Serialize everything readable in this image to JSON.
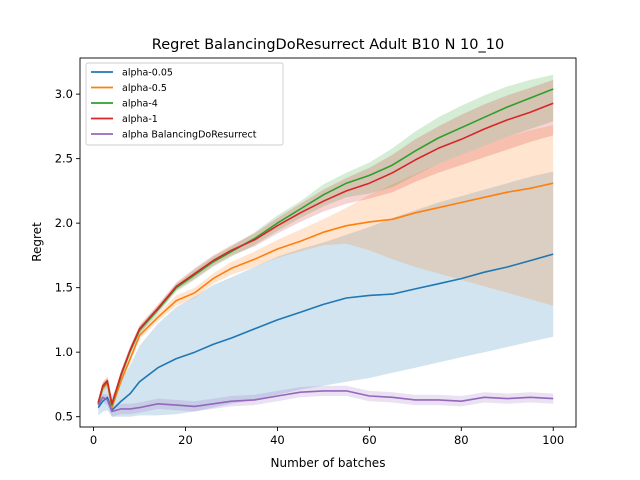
{
  "chart_data": {
    "type": "line",
    "title": "Regret BalancingDoResurrect Adult B10 N 10_10",
    "xlabel": "Number of batches",
    "ylabel": "Regret",
    "xlim": [
      -2.95,
      104.95
    ],
    "ylim": [
      0.42,
      3.28
    ],
    "xticks": [
      0,
      20,
      40,
      60,
      80,
      100
    ],
    "yticks": [
      0.5,
      1.0,
      1.5,
      2.0,
      2.5,
      3.0
    ],
    "xtick_labels": [
      "0",
      "20",
      "40",
      "60",
      "80",
      "100"
    ],
    "ytick_labels": [
      "0.5",
      "1.0",
      "1.5",
      "2.0",
      "2.5",
      "3.0"
    ],
    "grid": false,
    "legend_position": "top-left",
    "series": [
      {
        "name": "alpha-0.05",
        "color": "#1f77b4",
        "x": [
          1,
          2,
          3,
          4,
          6,
          8,
          10,
          14,
          18,
          22,
          26,
          30,
          35,
          40,
          45,
          50,
          55,
          60,
          65,
          70,
          75,
          80,
          85,
          90,
          95,
          100
        ],
        "mean": [
          0.57,
          0.62,
          0.65,
          0.55,
          0.62,
          0.68,
          0.77,
          0.88,
          0.95,
          1.0,
          1.06,
          1.11,
          1.18,
          1.25,
          1.31,
          1.37,
          1.42,
          1.44,
          1.45,
          1.49,
          1.53,
          1.57,
          1.62,
          1.66,
          1.71,
          1.76
        ],
        "lower": [
          0.51,
          0.54,
          0.55,
          0.5,
          0.5,
          0.5,
          0.51,
          0.51,
          0.52,
          0.54,
          0.57,
          0.6,
          0.63,
          0.67,
          0.71,
          0.74,
          0.77,
          0.8,
          0.84,
          0.88,
          0.92,
          0.96,
          1.0,
          1.04,
          1.08,
          1.12
        ],
        "upper": [
          0.62,
          0.7,
          0.75,
          0.66,
          0.78,
          0.9,
          1.05,
          1.22,
          1.35,
          1.43,
          1.52,
          1.58,
          1.66,
          1.74,
          1.8,
          1.85,
          1.91,
          1.97,
          2.04,
          2.1,
          2.16,
          2.21,
          2.26,
          2.31,
          2.36,
          2.4
        ]
      },
      {
        "name": "alpha-0.5",
        "color": "#ff7f0e",
        "x": [
          1,
          2,
          3,
          4,
          6,
          8,
          10,
          14,
          18,
          22,
          26,
          30,
          35,
          40,
          45,
          50,
          55,
          60,
          65,
          70,
          75,
          80,
          85,
          90,
          95,
          100
        ],
        "mean": [
          0.6,
          0.72,
          0.76,
          0.57,
          0.78,
          0.95,
          1.13,
          1.27,
          1.4,
          1.46,
          1.57,
          1.65,
          1.72,
          1.8,
          1.86,
          1.93,
          1.98,
          2.01,
          2.03,
          2.08,
          2.12,
          2.16,
          2.2,
          2.24,
          2.27,
          2.31
        ],
        "lower": [
          0.58,
          0.69,
          0.73,
          0.55,
          0.75,
          0.92,
          1.1,
          1.24,
          1.36,
          1.42,
          1.53,
          1.6,
          1.66,
          1.73,
          1.78,
          1.83,
          1.84,
          1.79,
          1.72,
          1.66,
          1.61,
          1.56,
          1.51,
          1.46,
          1.41,
          1.36
        ],
        "upper": [
          0.62,
          0.75,
          0.79,
          0.6,
          0.81,
          0.98,
          1.16,
          1.3,
          1.44,
          1.5,
          1.61,
          1.7,
          1.78,
          1.87,
          1.95,
          2.03,
          2.12,
          2.22,
          2.3,
          2.38,
          2.46,
          2.53,
          2.6,
          2.67,
          2.72,
          2.76
        ]
      },
      {
        "name": "alpha-4",
        "color": "#2ca02c",
        "x": [
          1,
          2,
          3,
          4,
          6,
          8,
          10,
          14,
          18,
          22,
          26,
          30,
          35,
          40,
          45,
          50,
          55,
          60,
          65,
          70,
          75,
          80,
          85,
          90,
          95,
          100
        ],
        "mean": [
          0.6,
          0.73,
          0.77,
          0.59,
          0.82,
          1.01,
          1.17,
          1.33,
          1.5,
          1.6,
          1.7,
          1.78,
          1.88,
          2.0,
          2.11,
          2.22,
          2.31,
          2.37,
          2.45,
          2.56,
          2.66,
          2.74,
          2.82,
          2.9,
          2.97,
          3.04
        ],
        "lower": [
          0.58,
          0.7,
          0.74,
          0.57,
          0.79,
          0.98,
          1.14,
          1.3,
          1.47,
          1.56,
          1.66,
          1.74,
          1.83,
          1.94,
          2.04,
          2.13,
          2.2,
          2.23,
          2.28,
          2.37,
          2.46,
          2.53,
          2.6,
          2.67,
          2.73,
          2.79
        ],
        "upper": [
          0.62,
          0.76,
          0.8,
          0.61,
          0.85,
          1.04,
          1.2,
          1.36,
          1.53,
          1.64,
          1.74,
          1.82,
          1.93,
          2.06,
          2.17,
          2.3,
          2.39,
          2.47,
          2.58,
          2.71,
          2.82,
          2.91,
          2.99,
          3.06,
          3.11,
          3.15
        ]
      },
      {
        "name": "alpha-1",
        "color": "#d62728",
        "x": [
          1,
          2,
          3,
          4,
          6,
          8,
          10,
          14,
          18,
          22,
          26,
          30,
          35,
          40,
          45,
          50,
          55,
          60,
          65,
          70,
          75,
          80,
          85,
          90,
          95,
          100
        ],
        "mean": [
          0.61,
          0.74,
          0.78,
          0.6,
          0.83,
          1.02,
          1.18,
          1.34,
          1.51,
          1.61,
          1.71,
          1.79,
          1.87,
          1.98,
          2.08,
          2.17,
          2.25,
          2.31,
          2.39,
          2.49,
          2.58,
          2.65,
          2.73,
          2.8,
          2.86,
          2.93
        ],
        "lower": [
          0.59,
          0.71,
          0.75,
          0.58,
          0.8,
          0.99,
          1.15,
          1.31,
          1.48,
          1.57,
          1.67,
          1.75,
          1.82,
          1.92,
          2.01,
          2.09,
          2.15,
          2.19,
          2.24,
          2.32,
          2.39,
          2.45,
          2.51,
          2.57,
          2.63,
          2.68
        ],
        "upper": [
          0.63,
          0.77,
          0.81,
          0.62,
          0.86,
          1.05,
          1.21,
          1.37,
          1.54,
          1.65,
          1.75,
          1.83,
          1.92,
          2.04,
          2.15,
          2.26,
          2.35,
          2.43,
          2.53,
          2.65,
          2.75,
          2.84,
          2.92,
          2.99,
          3.05,
          3.11
        ]
      },
      {
        "name": "alpha BalancingDoResurrect",
        "color": "#9467bd",
        "x": [
          1,
          2,
          3,
          4,
          6,
          8,
          10,
          14,
          18,
          22,
          26,
          30,
          35,
          40,
          45,
          50,
          55,
          60,
          65,
          70,
          75,
          80,
          85,
          90,
          95,
          100
        ],
        "mean": [
          0.59,
          0.65,
          0.63,
          0.54,
          0.56,
          0.56,
          0.57,
          0.6,
          0.59,
          0.58,
          0.6,
          0.62,
          0.63,
          0.66,
          0.69,
          0.7,
          0.7,
          0.66,
          0.65,
          0.63,
          0.63,
          0.62,
          0.65,
          0.64,
          0.65,
          0.64
        ],
        "lower": [
          0.56,
          0.61,
          0.59,
          0.5,
          0.52,
          0.52,
          0.53,
          0.56,
          0.55,
          0.54,
          0.56,
          0.58,
          0.59,
          0.62,
          0.65,
          0.66,
          0.66,
          0.62,
          0.61,
          0.59,
          0.59,
          0.58,
          0.61,
          0.6,
          0.61,
          0.6
        ],
        "upper": [
          0.62,
          0.68,
          0.67,
          0.58,
          0.6,
          0.6,
          0.61,
          0.64,
          0.63,
          0.62,
          0.64,
          0.66,
          0.67,
          0.7,
          0.73,
          0.74,
          0.74,
          0.7,
          0.69,
          0.67,
          0.67,
          0.66,
          0.69,
          0.68,
          0.69,
          0.68
        ]
      }
    ]
  }
}
